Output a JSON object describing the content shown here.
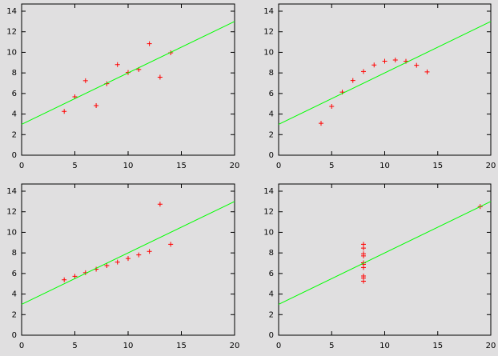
{
  "chart_data": [
    {
      "type": "scatter",
      "xlim": [
        0,
        20
      ],
      "ylim": [
        0,
        14.7
      ],
      "xticks": [
        0,
        5,
        10,
        15,
        20
      ],
      "yticks": [
        0,
        2,
        4,
        6,
        8,
        10,
        12,
        14
      ],
      "series": [
        {
          "style": "points",
          "color": "#ff0000",
          "x": [
            10,
            8,
            13,
            9,
            11,
            14,
            6,
            4,
            12,
            7,
            5
          ],
          "values": [
            8.04,
            6.95,
            7.58,
            8.81,
            8.33,
            9.96,
            7.24,
            4.26,
            10.84,
            4.82,
            5.68
          ]
        },
        {
          "style": "line",
          "color": "#00ff00",
          "x": [
            0,
            20
          ],
          "values": [
            3,
            13
          ]
        }
      ]
    },
    {
      "type": "scatter",
      "xlim": [
        0,
        20
      ],
      "ylim": [
        0,
        14.7
      ],
      "xticks": [
        0,
        5,
        10,
        15,
        20
      ],
      "yticks": [
        0,
        2,
        4,
        6,
        8,
        10,
        12,
        14
      ],
      "series": [
        {
          "style": "points",
          "color": "#ff0000",
          "x": [
            10,
            8,
            13,
            9,
            11,
            14,
            6,
            4,
            12,
            7,
            5
          ],
          "values": [
            9.14,
            8.14,
            8.74,
            8.77,
            9.26,
            8.1,
            6.13,
            3.1,
            9.13,
            7.26,
            4.74
          ]
        },
        {
          "style": "line",
          "color": "#00ff00",
          "x": [
            0,
            20
          ],
          "values": [
            3,
            13
          ]
        }
      ]
    },
    {
      "type": "scatter",
      "xlim": [
        0,
        20
      ],
      "ylim": [
        0,
        14.7
      ],
      "xticks": [
        0,
        5,
        10,
        15,
        20
      ],
      "yticks": [
        0,
        2,
        4,
        6,
        8,
        10,
        12,
        14
      ],
      "series": [
        {
          "style": "points",
          "color": "#ff0000",
          "x": [
            10,
            8,
            13,
            9,
            11,
            14,
            6,
            4,
            12,
            7,
            5
          ],
          "values": [
            7.46,
            6.77,
            12.74,
            7.11,
            7.81,
            8.84,
            6.08,
            5.39,
            8.15,
            6.42,
            5.73
          ]
        },
        {
          "style": "line",
          "color": "#00ff00",
          "x": [
            0,
            20
          ],
          "values": [
            3,
            13
          ]
        }
      ]
    },
    {
      "type": "scatter",
      "xlim": [
        0,
        20
      ],
      "ylim": [
        0,
        14.7
      ],
      "xticks": [
        0,
        5,
        10,
        15,
        20
      ],
      "yticks": [
        0,
        2,
        4,
        6,
        8,
        10,
        12,
        14
      ],
      "series": [
        {
          "style": "points",
          "color": "#ff0000",
          "x": [
            8,
            8,
            8,
            8,
            8,
            8,
            8,
            19,
            8,
            8,
            8
          ],
          "values": [
            6.58,
            5.76,
            7.71,
            8.84,
            8.47,
            7.04,
            5.25,
            12.5,
            5.56,
            7.91,
            6.89
          ]
        },
        {
          "style": "line",
          "color": "#00ff00",
          "x": [
            0,
            20
          ],
          "values": [
            3,
            13
          ]
        }
      ]
    }
  ]
}
